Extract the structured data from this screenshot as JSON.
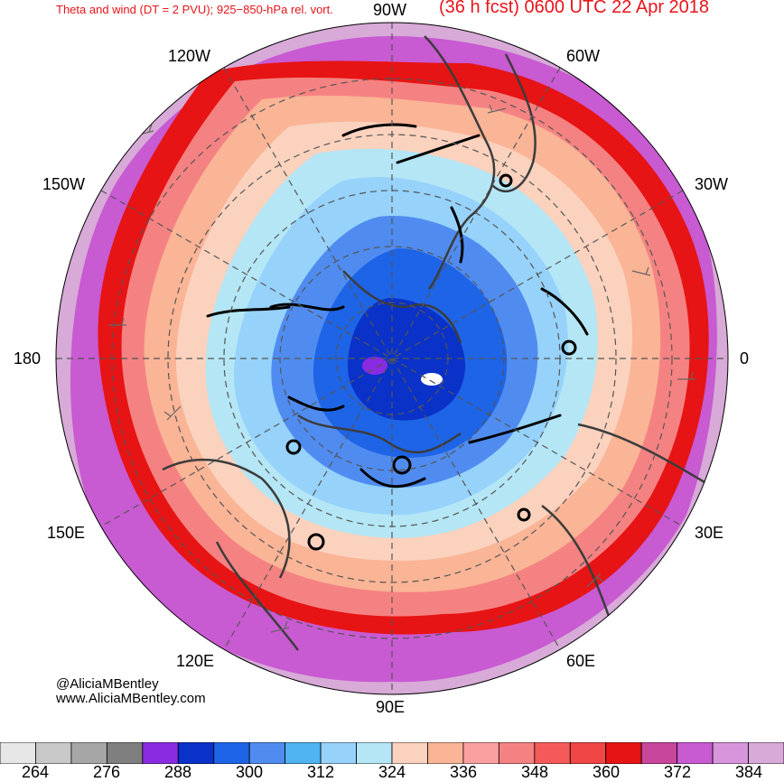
{
  "header": {
    "title_left": "Theta and wind (DT = 2 PVU); 925−850-hPa rel. vort.",
    "title_right": "(36 h fcst) 0600 UTC 22 Apr 2018"
  },
  "longitude_labels": {
    "lon_90w": "90W",
    "lon_60w": "60W",
    "lon_120w": "120W",
    "lon_150w": "150W",
    "lon_30w": "30W",
    "lon_180": "180",
    "lon_0": "0",
    "lon_150e": "150E",
    "lon_30e": "30E",
    "lon_120e": "120E",
    "lon_60e": "60E",
    "lon_90e": "90E"
  },
  "credits": {
    "handle": "@AliciaMBentley",
    "website": "www.AliciaMBentley.com"
  },
  "colorbar": {
    "labels": [
      "264",
      "276",
      "288",
      "300",
      "312",
      "324",
      "336",
      "348",
      "360",
      "372",
      "384"
    ],
    "colors": [
      "#e6e6e6",
      "#c8c8c8",
      "#a6a6a6",
      "#7f7f7f",
      "#8a2be2",
      "#0a32c8",
      "#1e64e6",
      "#508cf0",
      "#50b4f0",
      "#96d2fa",
      "#b4e6f5",
      "#fad2be",
      "#fab496",
      "#faa0a0",
      "#f58282",
      "#f55a5a",
      "#f04646",
      "#e61414",
      "#c8469b",
      "#c85ad2",
      "#d796dc",
      "#d7aad7"
    ]
  },
  "map_colors": {
    "outer": "#d7aad7",
    "ring_magenta": "#c85ad2",
    "ring_red": "#e61414",
    "ring_salmon": "#f58282",
    "ring_peach": "#fab496",
    "ring_lightpeach": "#fad2be",
    "ring_lightblue": "#b4e6f5",
    "ring_skyblue": "#96d2fa",
    "ring_blue": "#508cf0",
    "ring_darkblue": "#1e64e6",
    "core": "#0a32c8",
    "center": "#8a2be2",
    "coast": "#3c3c3c",
    "grid": "#555555"
  }
}
